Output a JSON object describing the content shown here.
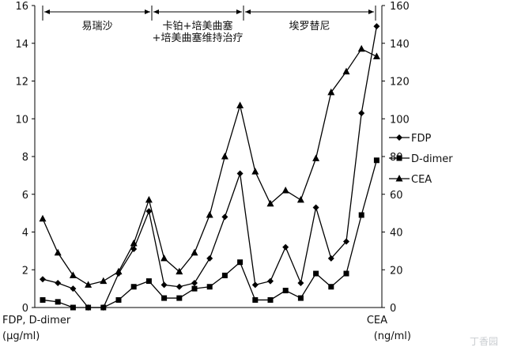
{
  "chart_data": {
    "type": "line",
    "x": [
      1,
      2,
      3,
      4,
      5,
      6,
      7,
      8,
      9,
      10,
      11,
      12,
      13,
      14,
      15,
      16,
      17,
      18,
      19,
      20,
      21,
      22,
      23
    ],
    "left_axis": {
      "title_line1": "FDP, D-dimer",
      "title_line2": "(μg/ml)",
      "ylim": [
        0,
        16
      ],
      "ticks": [
        "0",
        "2",
        "4",
        "6",
        "8",
        "10",
        "12",
        "14",
        "16"
      ]
    },
    "right_axis": {
      "title_line1": "CEA",
      "title_line2": "(ng/ml)",
      "ylim": [
        0,
        160
      ],
      "ticks": [
        "0",
        "20",
        "40",
        "60",
        "80",
        "100",
        "120",
        "140",
        "160"
      ]
    },
    "series": [
      {
        "name": "FDP",
        "axis": "left",
        "marker": "diamond",
        "values": [
          1.5,
          1.3,
          1.0,
          0.0,
          0.0,
          1.8,
          3.1,
          5.1,
          1.2,
          1.1,
          1.3,
          2.6,
          4.8,
          7.1,
          1.2,
          1.4,
          3.2,
          1.3,
          5.3,
          2.6,
          3.5,
          10.3,
          14.9
        ]
      },
      {
        "name": "D-dimer",
        "axis": "left",
        "marker": "square",
        "values": [
          0.4,
          0.3,
          0.0,
          0.0,
          0.0,
          0.4,
          1.1,
          1.4,
          0.5,
          0.5,
          1.0,
          1.1,
          1.7,
          2.4,
          0.4,
          0.4,
          0.9,
          0.5,
          1.8,
          1.1,
          1.8,
          4.9,
          7.8
        ]
      },
      {
        "name": "CEA",
        "axis": "right",
        "marker": "triangle",
        "values": [
          47,
          29,
          17,
          12,
          14,
          19,
          34,
          57,
          26,
          19,
          29,
          49,
          80,
          107,
          72,
          55,
          62,
          57,
          79,
          114,
          125,
          137,
          133
        ]
      }
    ],
    "phases": [
      {
        "line1": "易瑞沙",
        "line2": "",
        "from": 1,
        "to": 8
      },
      {
        "line1": "卡铂+培美曲塞",
        "line2": "+培美曲塞维持治疗",
        "from": 8,
        "to": 14
      },
      {
        "line1": "埃罗替尼",
        "line2": "",
        "from": 14,
        "to": 22.5
      }
    ],
    "grid": false,
    "legend_position": "right"
  },
  "watermark": "丁香园"
}
